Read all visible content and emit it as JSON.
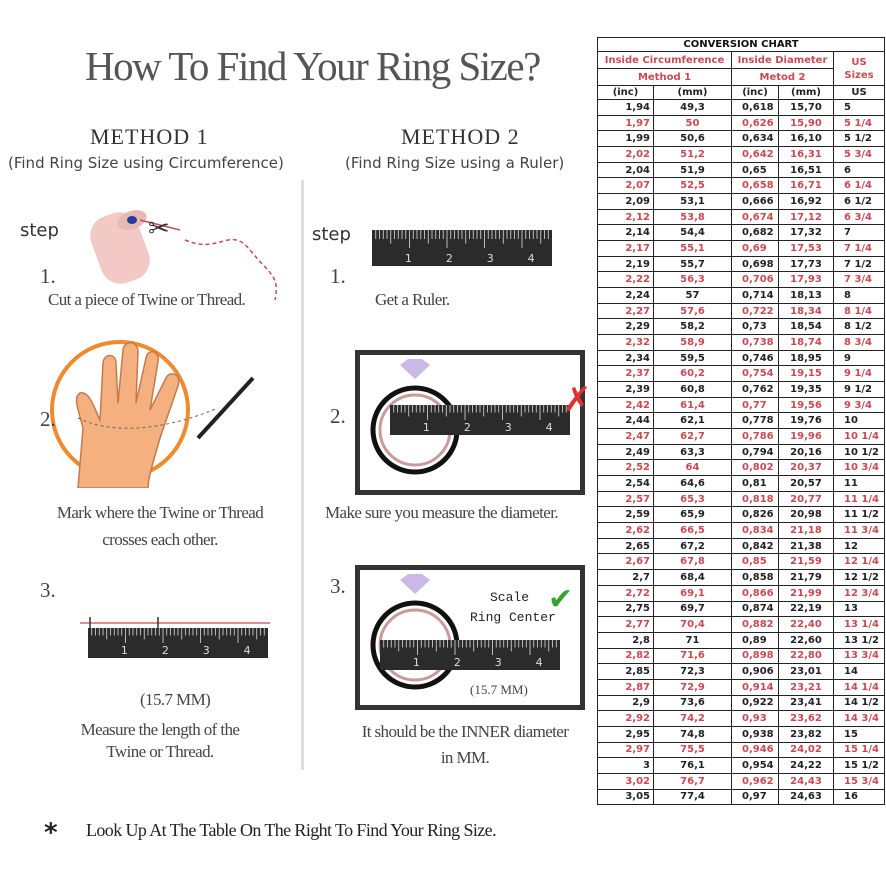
{
  "title": "How To Find Your Ring Size?",
  "method1": {
    "heading": "METHOD 1",
    "subtitle": "(Find Ring Size using Circumference)",
    "step_label": "step",
    "steps": [
      {
        "num": "1.",
        "text": "Cut a piece of  Twine or Thread."
      },
      {
        "num": "2.",
        "text": "Mark where the Twine or Thread",
        "text2": "crosses each other."
      },
      {
        "num": "3.",
        "measure": "(15.7 MM)",
        "text": "Measure the length of the",
        "text2": "Twine or Thread."
      }
    ]
  },
  "method2": {
    "heading": "METHOD 2",
    "subtitle": "(Find Ring Size using a Ruler)",
    "step_label": "step",
    "steps": [
      {
        "num": "1.",
        "text": "Get a Ruler."
      },
      {
        "num": "2.",
        "text": "Make sure you measure the diameter."
      },
      {
        "num": "3.",
        "scale": "Scale",
        "ring_center": "Ring Center",
        "measure": "(15.7 MM)",
        "text": "It should be the INNER diameter",
        "text2": "in MM."
      }
    ]
  },
  "ruler_numbers": [
    "1",
    "2",
    "3",
    "4"
  ],
  "footer": {
    "bullet": "*",
    "text": "Look Up At The Table On The Right To Find Your Ring Size."
  },
  "colors": {
    "red": "#c84a52",
    "orange": "#f08a30",
    "check": "#3aa030",
    "cross": "#e03030"
  },
  "conversion_chart": {
    "title": "CONVERSION CHART",
    "groups": [
      "Inside Circumference",
      "Method 1",
      "Inside Diameter",
      "Metod 2",
      "US Sizes"
    ],
    "units": [
      "(inc)",
      "(mm)",
      "(inc)",
      "(mm)",
      "US"
    ],
    "rows": [
      [
        "1,94",
        "49,3",
        "0,618",
        "15,70",
        "5"
      ],
      [
        "1,97",
        "50",
        "0,626",
        "15,90",
        "5 1/4"
      ],
      [
        "1,99",
        "50,6",
        "0,634",
        "16,10",
        "5 1/2"
      ],
      [
        "2,02",
        "51,2",
        "0,642",
        "16,31",
        "5 3/4"
      ],
      [
        "2,04",
        "51,9",
        "0,65",
        "16,51",
        "6"
      ],
      [
        "2,07",
        "52,5",
        "0,658",
        "16,71",
        "6 1/4"
      ],
      [
        "2,09",
        "53,1",
        "0,666",
        "16,92",
        "6 1/2"
      ],
      [
        "2,12",
        "53,8",
        "0,674",
        "17,12",
        "6 3/4"
      ],
      [
        "2,14",
        "54,4",
        "0,682",
        "17,32",
        "7"
      ],
      [
        "2,17",
        "55,1",
        "0,69",
        "17,53",
        "7 1/4"
      ],
      [
        "2,19",
        "55,7",
        "0,698",
        "17,73",
        "7 1/2"
      ],
      [
        "2,22",
        "56,3",
        "0,706",
        "17,93",
        "7 3/4"
      ],
      [
        "2,24",
        "57",
        "0,714",
        "18,13",
        "8"
      ],
      [
        "2,27",
        "57,6",
        "0,722",
        "18,34",
        "8 1/4"
      ],
      [
        "2,29",
        "58,2",
        "0,73",
        "18,54",
        "8 1/2"
      ],
      [
        "2,32",
        "58,9",
        "0,738",
        "18,74",
        "8 3/4"
      ],
      [
        "2,34",
        "59,5",
        "0,746",
        "18,95",
        "9"
      ],
      [
        "2,37",
        "60,2",
        "0,754",
        "19,15",
        "9 1/4"
      ],
      [
        "2,39",
        "60,8",
        "0,762",
        "19,35",
        "9 1/2"
      ],
      [
        "2,42",
        "61,4",
        "0,77",
        "19,56",
        "9 3/4"
      ],
      [
        "2,44",
        "62,1",
        "0,778",
        "19,76",
        "10"
      ],
      [
        "2,47",
        "62,7",
        "0,786",
        "19,96",
        "10 1/4"
      ],
      [
        "2,49",
        "63,3",
        "0,794",
        "20,16",
        "10 1/2"
      ],
      [
        "2,52",
        "64",
        "0,802",
        "20,37",
        "10 3/4"
      ],
      [
        "2,54",
        "64,6",
        "0,81",
        "20,57",
        "11"
      ],
      [
        "2,57",
        "65,3",
        "0,818",
        "20,77",
        "11 1/4"
      ],
      [
        "2,59",
        "65,9",
        "0,826",
        "20,98",
        "11 1/2"
      ],
      [
        "2,62",
        "66,5",
        "0,834",
        "21,18",
        "11 3/4"
      ],
      [
        "2,65",
        "67,2",
        "0,842",
        "21,38",
        "12"
      ],
      [
        "2,67",
        "67,8",
        "0,85",
        "21,59",
        "12 1/4"
      ],
      [
        "2,7",
        "68,4",
        "0,858",
        "21,79",
        "12 1/2"
      ],
      [
        "2,72",
        "69,1",
        "0,866",
        "21,99",
        "12 3/4"
      ],
      [
        "2,75",
        "69,7",
        "0,874",
        "22,19",
        "13"
      ],
      [
        "2,77",
        "70,4",
        "0,882",
        "22,40",
        "13 1/4"
      ],
      [
        "2,8",
        "71",
        "0,89",
        "22,60",
        "13 1/2"
      ],
      [
        "2,82",
        "71,6",
        "0,898",
        "22,80",
        "13 3/4"
      ],
      [
        "2,85",
        "72,3",
        "0,906",
        "23,01",
        "14"
      ],
      [
        "2,87",
        "72,9",
        "0,914",
        "23,21",
        "14 1/4"
      ],
      [
        "2,9",
        "73,6",
        "0,922",
        "23,41",
        "14 1/2"
      ],
      [
        "2,92",
        "74,2",
        "0,93",
        "23,62",
        "14 3/4"
      ],
      [
        "2,95",
        "74,8",
        "0,938",
        "23,82",
        "15"
      ],
      [
        "2,97",
        "75,5",
        "0,946",
        "24,02",
        "15 1/4"
      ],
      [
        "3",
        "76,1",
        "0,954",
        "24,22",
        "15 1/2"
      ],
      [
        "3,02",
        "76,7",
        "0,962",
        "24,43",
        "15 3/4"
      ],
      [
        "3,05",
        "77,4",
        "0,97",
        "24,63",
        "16"
      ]
    ]
  }
}
